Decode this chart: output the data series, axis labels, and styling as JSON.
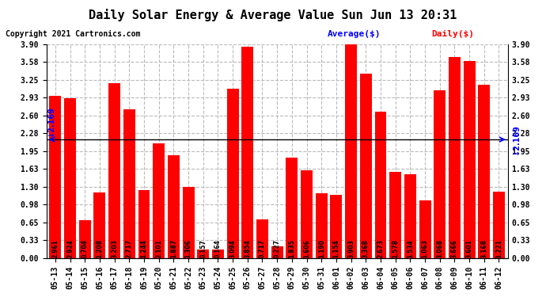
{
  "title": "Daily Solar Energy & Average Value Sun Jun 13 20:31",
  "copyright": "Copyright 2021 Cartronics.com",
  "legend_avg": "Average($)",
  "legend_daily": "Daily($)",
  "average_value": 2.169,
  "categories": [
    "05-13",
    "05-14",
    "05-15",
    "05-16",
    "05-17",
    "05-18",
    "05-19",
    "05-20",
    "05-21",
    "05-22",
    "05-23",
    "05-24",
    "05-25",
    "05-26",
    "05-27",
    "05-28",
    "05-29",
    "05-30",
    "05-31",
    "06-01",
    "06-02",
    "06-03",
    "06-04",
    "06-05",
    "06-06",
    "06-07",
    "06-08",
    "06-09",
    "06-10",
    "06-11",
    "06-12"
  ],
  "values": [
    2.961,
    2.924,
    0.704,
    1.208,
    3.203,
    2.717,
    1.244,
    2.101,
    1.887,
    1.306,
    0.157,
    0.164,
    3.094,
    3.854,
    0.717,
    0.227,
    1.835,
    1.606,
    1.19,
    1.154,
    3.903,
    3.368,
    2.673,
    1.578,
    1.534,
    1.063,
    3.068,
    3.666,
    3.601,
    3.168,
    1.221
  ],
  "bar_color": "#ff0000",
  "avg_line_color": "#0000ff",
  "background_color": "#ffffff",
  "grid_color": "#bbbbbb",
  "ylim": [
    0,
    3.9
  ],
  "yticks": [
    0.0,
    0.33,
    0.65,
    0.98,
    1.3,
    1.63,
    1.95,
    2.28,
    2.6,
    2.93,
    3.25,
    3.58,
    3.9
  ],
  "title_fontsize": 11,
  "copyright_fontsize": 7,
  "bar_value_fontsize": 5.5,
  "tick_fontsize": 7,
  "legend_fontsize": 8
}
